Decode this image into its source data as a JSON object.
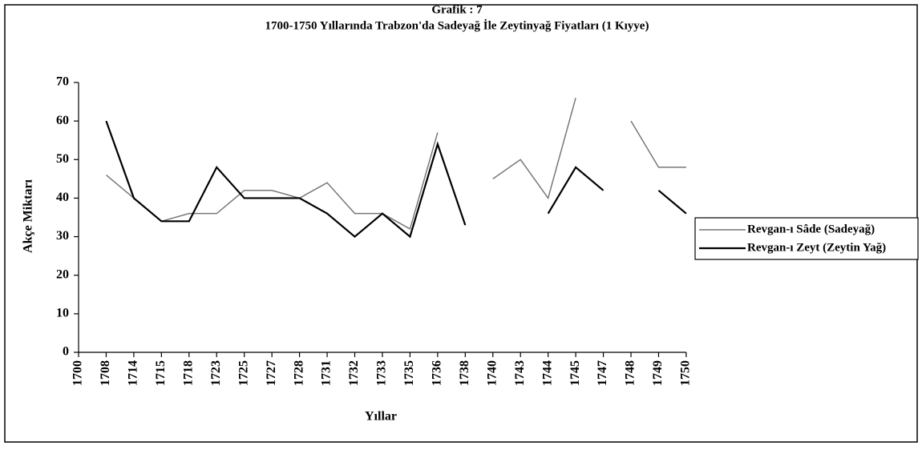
{
  "chart_data": {
    "type": "line",
    "title": "Grafik : 7",
    "subtitle": "1700-1750 Yıllarında Trabzon'da Sadeyağ İle Zeytinyağ Fiyatları (1 Kıyye)",
    "x_label": "Yıllar",
    "y_label": "Akçe Miktarı",
    "categories": [
      "1700",
      "1708",
      "1714",
      "1715",
      "1718",
      "1723",
      "1725",
      "1727",
      "1728",
      "1731",
      "1732",
      "1733",
      "1735",
      "1736",
      "1738",
      "1740",
      "1743",
      "1744",
      "1745",
      "1747",
      "1748",
      "1749",
      "1750"
    ],
    "series": [
      {
        "name": "Revgan-ı Sâde (Sadeyağ)",
        "color": "#777777",
        "values": [
          null,
          46,
          40,
          34,
          36,
          36,
          42,
          42,
          40,
          44,
          36,
          36,
          32,
          57,
          null,
          45,
          50,
          40,
          66,
          null,
          60,
          48,
          48
        ]
      },
      {
        "name": "Revgan-ı Zeyt (Zeytin Yağ)",
        "color": "#000000",
        "values": [
          null,
          60,
          40,
          34,
          34,
          48,
          40,
          40,
          40,
          36,
          30,
          36,
          30,
          54,
          33,
          null,
          null,
          36,
          48,
          42,
          null,
          42,
          36
        ]
      }
    ],
    "ylim": [
      0,
      70
    ],
    "yticks": [
      0,
      10,
      20,
      30,
      40,
      50,
      60,
      70
    ],
    "legend": "right"
  }
}
